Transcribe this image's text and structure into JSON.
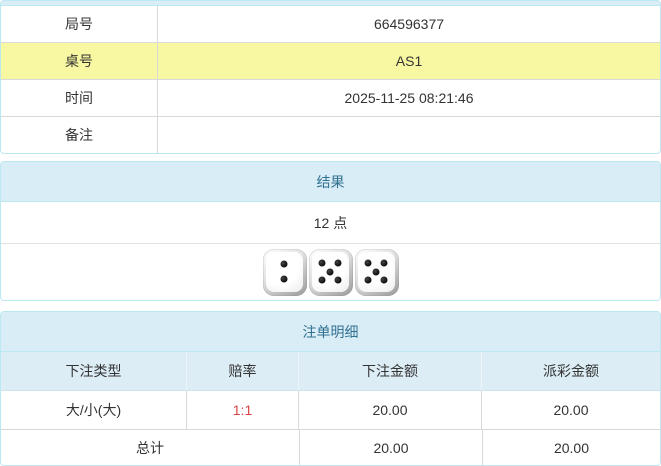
{
  "colors": {
    "panel_border": "#bce8f1",
    "heading_bg": "#d9edf7",
    "colheader_bg": "#dcedf5",
    "heading_text": "#31708f",
    "row_divider": "#d9d9d9",
    "highlight_row_bg": "#f8f8a2",
    "odds_text": "#dd4444",
    "cell_text": "#333333"
  },
  "info": {
    "rows": [
      {
        "label": "局号",
        "value": "664596377",
        "highlight": false
      },
      {
        "label": "桌号",
        "value": "AS1",
        "highlight": true
      },
      {
        "label": "时间",
        "value": "2025-11-25 08:21:46",
        "highlight": false
      },
      {
        "label": "备注",
        "value": "",
        "highlight": false
      }
    ]
  },
  "result": {
    "header": "结果",
    "points": "12 点",
    "dice": [
      2,
      5,
      5
    ]
  },
  "bets": {
    "header": "注单明细",
    "columns": [
      "下注类型",
      "赔率",
      "下注金额",
      "派彩金额"
    ],
    "rows": [
      {
        "type": "大/小(大)",
        "odds": "1:1",
        "bet_amount": "20.00",
        "payout_amount": "20.00"
      }
    ],
    "total": {
      "label": "总计",
      "bet_amount": "20.00",
      "payout_amount": "20.00"
    }
  }
}
